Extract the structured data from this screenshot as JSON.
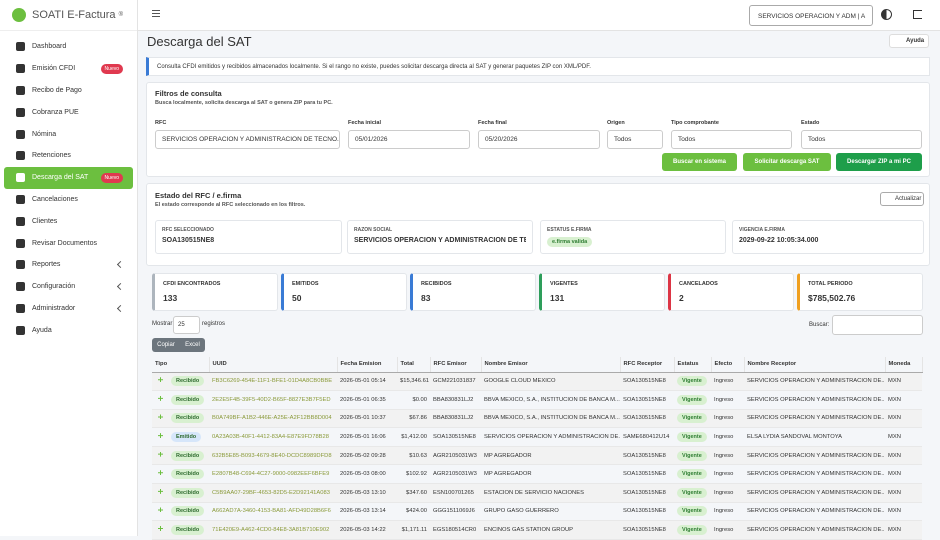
{
  "brand": {
    "name": "SOATI E-Factura",
    "mark": "®"
  },
  "sidebar": [
    {
      "label": "Dashboard"
    },
    {
      "label": "Emisión CFDI",
      "badge": "Nuevo"
    },
    {
      "label": "Recibo de Pago"
    },
    {
      "label": "Cobranza PUE"
    },
    {
      "label": "Nómina"
    },
    {
      "label": "Retenciones"
    },
    {
      "label": "Descarga del SAT",
      "badge": "Nuevo",
      "active": true
    },
    {
      "label": "Cancelaciones"
    },
    {
      "label": "Clientes"
    },
    {
      "label": "Revisar Documentos"
    },
    {
      "label": "Reportes",
      "submenu": true
    },
    {
      "label": "Configuración",
      "submenu": true
    },
    {
      "label": "Administrador",
      "submenu": true
    },
    {
      "label": "Ayuda"
    }
  ],
  "header": {
    "company": "SERVICIOS OPERACION Y ADM | A"
  },
  "page": {
    "title": "Descarga del SAT",
    "help": "Ayuda",
    "info": "Consulta CFDI emitidos y recibidos almacenados localmente. Si el rango no existe, puedes solicitar descarga directa al SAT y generar paquetes ZIP con XML/PDF."
  },
  "filters": {
    "title": "Filtros de consulta",
    "subtitle": "Busca localmente, solicita descarga al SAT o genera ZIP para tu PC.",
    "fields": [
      {
        "label": "RFC",
        "value": "SERVICIOS OPERACION Y ADMINISTRACION DE TECNO..."
      },
      {
        "label": "Fecha inicial",
        "value": "05/01/2026"
      },
      {
        "label": "Fecha final",
        "value": "05/20/2026"
      },
      {
        "label": "Origen",
        "value": "Todos"
      },
      {
        "label": "Tipo comprobante",
        "value": "Todos"
      },
      {
        "label": "Estado",
        "value": "Todos"
      }
    ],
    "buttons": [
      "Buscar en sistema",
      "Solicitar descarga SAT",
      "Descargar ZIP a mi PC"
    ]
  },
  "status": {
    "title": "Estado del RFC / e.firma",
    "subtitle": "El estado corresponde al RFC seleccionado en los filtros.",
    "refresh": "Actualizar",
    "items": [
      {
        "label": "RFC SELECCIONADO",
        "value": "SOA130515NE8"
      },
      {
        "label": "RAZON SOCIAL",
        "value": "SERVICIOS OPERACION Y ADMINISTRACION DE TECNO..."
      },
      {
        "label": "ESTATUS E.FIRMA",
        "value": "e.firma valida"
      },
      {
        "label": "VIGENCIA E.FIRMA",
        "value": "2029-09-22 10:05:34.000"
      }
    ]
  },
  "stats": [
    {
      "label": "CFDI ENCONTRADOS",
      "value": "133",
      "color": "#adb5bd"
    },
    {
      "label": "EMITIDOS",
      "value": "50",
      "color": "#3a7bd5"
    },
    {
      "label": "RECIBIDOS",
      "value": "83",
      "color": "#3a7bd5"
    },
    {
      "label": "VIGENTES",
      "value": "131",
      "color": "#2e9e5b"
    },
    {
      "label": "CANCELADOS",
      "value": "2",
      "color": "#dc3545"
    },
    {
      "label": "TOTAL PERIODO",
      "value": "$785,502.76",
      "color": "#f0a020"
    }
  ],
  "table": {
    "show": "Mostrar",
    "page_size": "25",
    "records": "registros",
    "search": "Buscar:",
    "buttons": [
      "Copiar",
      "Excel"
    ],
    "headers": [
      "Tipo",
      "UUID",
      "Fecha Emision",
      "Total",
      "RFC Emisor",
      "Nombre Emisor",
      "RFC Receptor",
      "Estatus",
      "Efecto",
      "Nombre Receptor",
      "Moneda"
    ],
    "rows": [
      {
        "tipo_color": "#d8f0d0",
        "cells": [
          "Recibido",
          "FB3C6269-454E-11F1-BFE1-01D4A8CB0BBE",
          "2026-05-01 05:14",
          "$15,346.61",
          "GCM221031837",
          "GOOGLE CLOUD MEXICO",
          "SOA130515NE8",
          "Vigente",
          "Ingreso",
          "SERVICIOS OPERACION Y ADMINISTRACION DE...",
          "MXN"
        ]
      },
      {
        "tipo_color": "#d8f0d0",
        "cells": [
          "Recibido",
          "2E2E5F4B-39F5-40D2-B65F-8827E3B7F5ED",
          "2026-05-01 06:35",
          "$0.00",
          "BBA830831LJ2",
          "BBVA MEXICO, S.A., INSTITUCION DE BANCA M...",
          "SOA130515NE8",
          "Vigente",
          "Ingreso",
          "SERVICIOS OPERACION Y ADMINISTRACION DE...",
          "MXN"
        ]
      },
      {
        "tipo_color": "#d8f0d0",
        "cells": [
          "Recibido",
          "B0A749BF-A1B2-446E-A25E-A2F12BB8D004",
          "2026-05-01 10:37",
          "$67.86",
          "BBA830831LJ2",
          "BBVA MEXICO, S.A., INSTITUCION DE BANCA M...",
          "SOA130515NE8",
          "Vigente",
          "Ingreso",
          "SERVICIOS OPERACION Y ADMINISTRACION DE...",
          "MXN"
        ]
      },
      {
        "tipo_color": "#d6e6fa",
        "cells": [
          "Emitido",
          "0A23A03B-40F1-4412-83A4-E87E9FD78B28",
          "2026-05-01 16:06",
          "$1,412.00",
          "SOA130515NE8",
          "SERVICIOS OPERACION Y ADMINISTRACION DE...",
          "SAME680412U14",
          "Vigente",
          "Ingreso",
          "ELSA LYDIA SANDOVAL MONTOYA",
          "MXN"
        ]
      },
      {
        "tipo_color": "#d8f0d0",
        "cells": [
          "Recibido",
          "632B5E85-B093-4679-8E40-DCDC8989DFD8",
          "2026-05-02 09:28",
          "$10.63",
          "AGR2105031W3",
          "MP AGREGADOR",
          "SOA130515NE8",
          "Vigente",
          "Ingreso",
          "SERVICIOS OPERACION Y ADMINISTRACION DE...",
          "MXN"
        ]
      },
      {
        "tipo_color": "#d8f0d0",
        "cells": [
          "Recibido",
          "E2807B48-C694-4C27-9000-0982EEF6BFE9",
          "2026-05-03 08:00",
          "$102.92",
          "AGR2105031W3",
          "MP AGREGADOR",
          "SOA130515NE8",
          "Vigente",
          "Ingreso",
          "SERVICIOS OPERACION Y ADMINISTRACION DE...",
          "MXN"
        ]
      },
      {
        "tipo_color": "#d8f0d0",
        "cells": [
          "Recibido",
          "C5B9AA07-29BF-4653-82D5-E2D92141A083",
          "2026-05-03 13:10",
          "$347.60",
          "ESN100701265",
          "ESTACION DE SERVICIO NACIONES",
          "SOA130515NE8",
          "Vigente",
          "Ingreso",
          "SERVICIOS OPERACION Y ADMINISTRACION DE...",
          "MXN"
        ]
      },
      {
        "tipo_color": "#d8f0d0",
        "cells": [
          "Recibido",
          "A662AD7A-3460-4153-BA81-AFD49D28B6F6",
          "2026-05-03 13:14",
          "$424.00",
          "GGG1511069J6",
          "GRUPO GASO GUERRERO",
          "SOA130515NE8",
          "Vigente",
          "Ingreso",
          "SERVICIOS OPERACION Y ADMINISTRACION DE...",
          "MXN"
        ]
      },
      {
        "tipo_color": "#d8f0d0",
        "cells": [
          "Recibido",
          "71E420E9-A462-4CD0-84E8-3A81B710E902",
          "2026-05-03 14:22",
          "$1,171.11",
          "EGS180514CR0",
          "ENCINOS GAS STATION GROUP",
          "SOA130515NE8",
          "Vigente",
          "Ingreso",
          "SERVICIOS OPERACION Y ADMINISTRACION DE...",
          "MXN"
        ]
      }
    ]
  }
}
